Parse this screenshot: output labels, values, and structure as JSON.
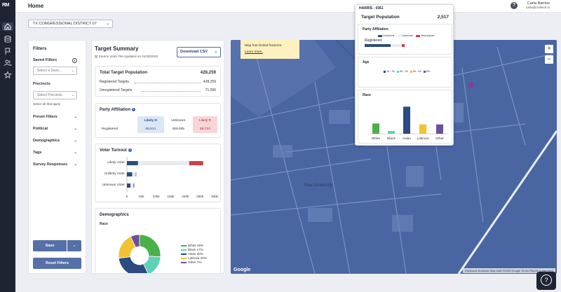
{
  "rail": {
    "logo": "RM"
  },
  "header": {
    "title": "Home",
    "help": "?",
    "user_name": "Carla Barrios",
    "user_email": "carla@civitech.io"
  },
  "district": {
    "selected": "TX CONGRESSIONAL DISTRICT 07"
  },
  "filters": {
    "title": "Filters",
    "saved_filters_label": "Saved Filters",
    "saved_placeholder": "Select a Save...",
    "precincts_label": "Precincts",
    "precincts_placeholder": "Select Precincts",
    "precincts_hint": "Select all that apply",
    "accordions": [
      "Preset Filters",
      "Political",
      "Demographics",
      "Tags",
      "Survey Responses"
    ],
    "save_label": "Save",
    "reset_label": "Reset Filters"
  },
  "summary": {
    "title": "Target Summary",
    "subtitle": "Source Voter File Updated on 01/28/2025",
    "download_label": "Download CSV",
    "total_label": "Total Target Population",
    "total_value": "428,259",
    "registered_label": "Registered Targets",
    "registered_value": "428,259",
    "unregistered_label": "Unregistered Targets",
    "unregistered_value": "71,096",
    "party": {
      "title": "Party Affiliation",
      "col_d": "Likely D",
      "col_u": "Unknown",
      "col_r": "Likely R",
      "row_label": "Registered",
      "d": "88,814",
      "u": "259,935",
      "r": "69,710"
    },
    "turnout": {
      "title": "Voter Turnout",
      "rows": [
        "Likely Voter",
        "Unlikely Voter",
        "Unknown Voter"
      ],
      "ticks": [
        "0",
        "50k",
        "100k",
        "150k",
        "200k",
        "250k",
        "300k"
      ]
    },
    "demographics": {
      "title": "Demographics",
      "race_label": "Race",
      "legend": [
        "White 26%",
        "Black 17%",
        "Asian 30%",
        "Latino/a 20%",
        "Other 7%"
      ]
    }
  },
  "chart_data": [
    {
      "type": "bar",
      "title": "Voter Turnout",
      "categories": [
        "Likely Voter",
        "Unlikely Voter",
        "Unknown Voter"
      ],
      "series": [
        {
          "name": "Democrat",
          "values": [
            38000,
            18000,
            12000
          ]
        },
        {
          "name": "Unknown",
          "values": [
            175000,
            12000,
            10000
          ]
        },
        {
          "name": "Republican",
          "values": [
            48000,
            2000,
            3000
          ]
        }
      ],
      "xlim": [
        0,
        300000
      ],
      "orientation": "horizontal",
      "colors": [
        "#2c4b80",
        "#e9ebef",
        "#c9414d"
      ]
    },
    {
      "type": "pie",
      "title": "Race",
      "categories": [
        "White",
        "Black",
        "Asian",
        "Latino/a",
        "Other"
      ],
      "values": [
        26,
        17,
        30,
        20,
        7
      ],
      "colors": [
        "#4ab04a",
        "#5fd0b7",
        "#2c4b80",
        "#f2c232",
        "#6b4f9a"
      ],
      "donut": true
    },
    {
      "type": "bar",
      "title": "Race",
      "categories": [
        "White",
        "Black",
        "Asian",
        "Latino/a",
        "Other"
      ],
      "values": [
        330,
        90,
        870,
        300,
        300
      ],
      "colors": [
        "#4ab04a",
        "#5fd0b7",
        "#2c4b80",
        "#f2c232",
        "#6b4f9a"
      ]
    }
  ],
  "map": {
    "notice": "Map has limited features.",
    "learn_more": "Learn more.",
    "place_label": "Rice University",
    "google": "Google",
    "attribution": "Keyboard shortcuts   Map data ©2025 Google   Terms   Report a map error",
    "zoom_in": "+",
    "zoom_out": "−"
  },
  "popup": {
    "precinct": "HARRIS - 0361",
    "target_label": "Target Population",
    "target_value": "2,517",
    "party_title": "Party Affiliation",
    "party_legend": [
      "Democrat",
      "Unknown",
      "Republican"
    ],
    "party_row": "Registered",
    "age_title": "Age",
    "age_legend": [
      "18 - 34",
      "35 - 49",
      "50 - 64",
      "65+"
    ],
    "race_title": "Race",
    "race_categories": [
      "White",
      "Black",
      "Asian",
      "Latino/a",
      "Other"
    ]
  },
  "colors": {
    "democrat": "#2c4b80",
    "republican": "#c9414d",
    "button": "#5570a6",
    "map": "#4a66a2"
  }
}
